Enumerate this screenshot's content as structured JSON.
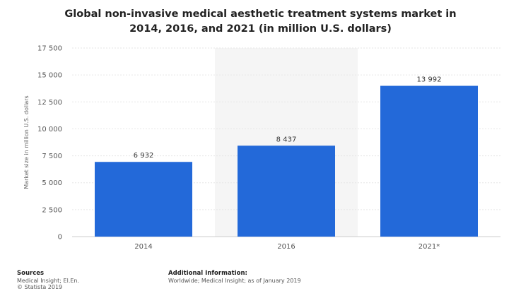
{
  "chart_data": {
    "type": "bar",
    "title_lines": [
      "Global non-invasive medical aesthetic treatment systems market in",
      "2014, 2016, and 2021 (in million U.S. dollars)"
    ],
    "categories": [
      "2014",
      "2016",
      "2021*"
    ],
    "values": [
      6932,
      8437,
      13992
    ],
    "value_labels": [
      "6 932",
      "8 437",
      "13 992"
    ],
    "ylabel": "Market size in million U.S. dollars",
    "xlabel": "",
    "ylim": [
      0,
      17500
    ],
    "yticks": [
      0,
      2500,
      5000,
      7500,
      10000,
      12500,
      15000,
      17500
    ],
    "ytick_labels": [
      "0",
      "2 500",
      "5 000",
      "7 500",
      "10 000",
      "12 500",
      "15 000",
      "17 500"
    ],
    "grid": true,
    "bar_color": "#2369d9",
    "highlight_band_color": "#f5f5f5"
  },
  "footer": {
    "sources_heading": "Sources",
    "sources_line1": "Medical Insight; El.En.",
    "sources_line2": "© Statista 2019",
    "info_heading": "Additional Information:",
    "info_line1": "Worldwide; Medical Insight; as of January 2019"
  }
}
